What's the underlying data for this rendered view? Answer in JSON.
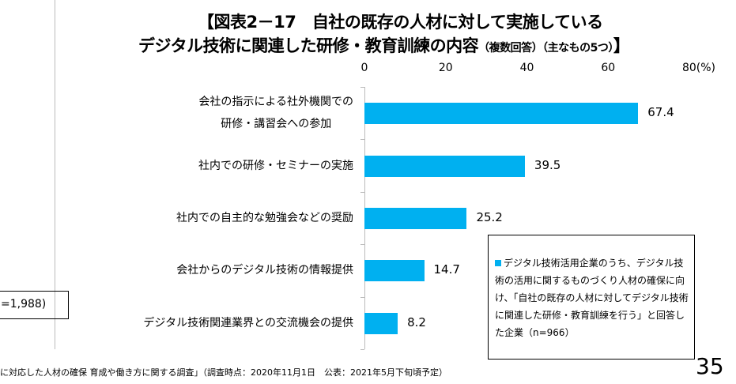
{
  "title_line1": "【図表2－17　自社の既存の人材に対して実施している",
  "title_line2": "デジタル技術に関連した研修・教育訓練の内容",
  "title_note": "（複数回答）（主なもの5つ）",
  "title_close": "】",
  "chart_data": {
    "type": "bar",
    "orientation": "horizontal",
    "categories": [
      "会社の指示による社外機関での\n研修・講習会への参加",
      "社内での研修・セミナーの実施",
      "社内での自主的な勉強会などの奨励",
      "会社からのデジタル技術の情報提供",
      "デジタル技術関連業界との交流機会の提供"
    ],
    "values": [
      67.4,
      39.5,
      25.2,
      14.7,
      8.2
    ],
    "value_labels": [
      "67.4",
      "39.5",
      "25.2",
      "14.7",
      "8.2"
    ],
    "xlim": [
      0,
      80
    ],
    "ticks": [
      "0",
      "20",
      "40",
      "60",
      "80(%)"
    ],
    "tick_values": [
      0,
      20,
      40,
      60,
      80
    ],
    "color": "#00b0f0",
    "axis_position": "top"
  },
  "legend_text": "デジタル技術活用企業のうち、デジタル技術の活用に関するものづくり人材の確保に向け、「自社の既存の人材に対してデジタル技術に関連した研修・教育訓練を行う」と回答した企業（n=966）",
  "side_box": "=1,988)",
  "footer": "に対応した人材の確保 育成や働き方に関する調査」（調査時点：2020年11月1日　公表：2021年5月下旬頃予定）",
  "page_number": "35"
}
